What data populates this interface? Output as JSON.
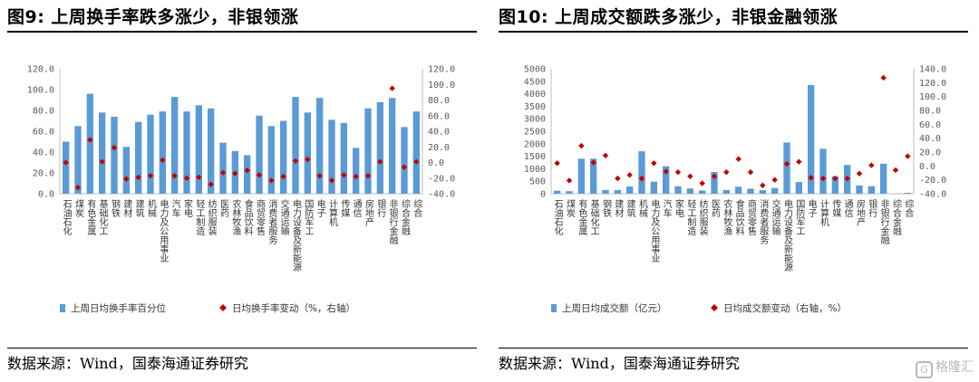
{
  "figures": [
    {
      "title": "图9:  上周换手率跌多涨少，非银领涨",
      "source": "数据来源：Wind，国泰海通证券研究"
    },
    {
      "title": "图10:  上周成交额跌多涨少，非银金融领涨",
      "source": "数据来源：Wind，国泰海通证券研究"
    }
  ],
  "colors": {
    "bar": "#5b9bd5",
    "marker": "#c00000",
    "axis": "#bfbfbf",
    "text": "#595959"
  },
  "watermark": {
    "icon": "wm-logo-icon",
    "text": "格隆汇"
  },
  "chart_data": [
    {
      "type": "bar",
      "categories": [
        "石油石化",
        "煤炭",
        "有色金属",
        "基础化工",
        "钢铁",
        "建材",
        "建筑",
        "机械",
        "电力及公用事业",
        "汽车",
        "家电",
        "轻工制造",
        "纺织服装",
        "医药",
        "农林牧渔",
        "食品饮料",
        "商贸零售",
        "消费者服务",
        "交通运输",
        "电力设备及新能源",
        "国防军工",
        "电子",
        "计算机",
        "传媒",
        "通信",
        "房地产",
        "银行",
        "非银行金融",
        "综合金融",
        "综合"
      ],
      "series": [
        {
          "name": "上周日均换手率百分位",
          "axis": "left",
          "values": [
            50,
            65,
            96,
            78,
            74,
            45,
            69,
            76,
            79,
            93,
            79,
            85,
            82,
            49,
            41,
            37,
            75,
            65,
            70,
            93,
            78,
            92,
            71,
            68,
            44,
            82,
            88,
            92,
            64,
            79
          ]
        },
        {
          "name": "日均换手率变动（%，右轴）",
          "axis": "right",
          "values": [
            0,
            -32,
            29,
            1,
            19,
            -21,
            -19,
            -17,
            3,
            -17,
            -20,
            -19,
            -28,
            -13,
            -14,
            -10,
            -16,
            -23,
            -18,
            2,
            4,
            -17,
            -23,
            -16,
            -18,
            -17,
            1,
            95,
            -6,
            1
          ]
        }
      ],
      "left_axis": {
        "min": 0,
        "max": 120,
        "step": 20,
        "ticks": [
          "0.0",
          "20.0",
          "40.0",
          "60.0",
          "80.0",
          "100.0",
          "120.0"
        ]
      },
      "right_axis": {
        "min": -40,
        "max": 120,
        "step": 20,
        "ticks": [
          "-40.0",
          "-20.0",
          "0.0",
          "20.0",
          "40.0",
          "60.0",
          "80.0",
          "100.0",
          "120.0"
        ]
      },
      "legend": [
        {
          "kind": "bar",
          "label": "上周日均换手率百分位"
        },
        {
          "kind": "marker",
          "label": "日均换手率变动（%，右轴）"
        }
      ]
    },
    {
      "type": "bar",
      "categories": [
        "石油石化",
        "煤炭",
        "有色金属",
        "基础化工",
        "钢铁",
        "建材",
        "建筑",
        "机械",
        "电力及公用事业",
        "汽车",
        "家电",
        "轻工制造",
        "纺织服装",
        "医药",
        "农林牧渔",
        "食品饮料",
        "商贸零售",
        "消费者服务",
        "交通运输",
        "电力设备及新能源",
        "国防军工",
        "电子",
        "计算机",
        "传媒",
        "通信",
        "房地产",
        "银行",
        "非银行金融",
        "综合金融",
        "综合"
      ],
      "series": [
        {
          "name": "上周日均成交额（亿元）",
          "axis": "left",
          "values": [
            120,
            100,
            1400,
            1400,
            150,
            150,
            290,
            1700,
            480,
            1100,
            300,
            210,
            130,
            870,
            150,
            280,
            200,
            140,
            230,
            2050,
            470,
            4350,
            1800,
            700,
            1150,
            330,
            300,
            1200,
            0,
            30
          ]
        },
        {
          "name": "日均成交额变动（右轴，%）",
          "axis": "right",
          "values": [
            4,
            -21,
            29,
            5,
            15,
            -18,
            -13,
            -18,
            4,
            -8,
            -9,
            -15,
            -25,
            -15,
            -9,
            10,
            -9,
            -28,
            -20,
            3,
            6,
            -17,
            -18,
            -18,
            -18,
            -11,
            1,
            127,
            -6,
            14
          ]
        }
      ],
      "left_axis": {
        "min": 0,
        "max": 5000,
        "step": 500,
        "ticks": [
          "0",
          "500",
          "1000",
          "1500",
          "2000",
          "2500",
          "3000",
          "3500",
          "4000",
          "4500",
          "5000"
        ]
      },
      "right_axis": {
        "min": -40,
        "max": 140,
        "step": 20,
        "ticks": [
          "-40.0",
          "-20.0",
          "0.0",
          "20.0",
          "40.0",
          "60.0",
          "80.0",
          "100.0",
          "120.0",
          "140.0"
        ]
      },
      "legend": [
        {
          "kind": "bar",
          "label": "上周日均成交额（亿元）"
        },
        {
          "kind": "marker",
          "label": "日均成交额变动（右轴，%）"
        }
      ]
    }
  ]
}
